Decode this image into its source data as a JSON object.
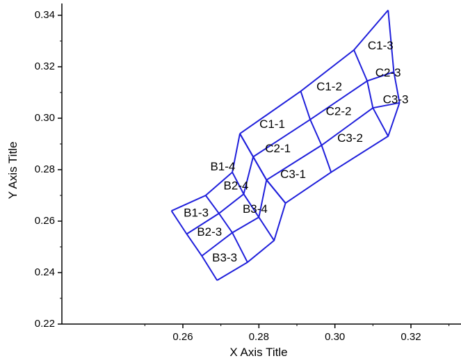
{
  "chart_data": {
    "type": "mesh-grid",
    "xlabel": "X Axis Title",
    "ylabel": "Y Axis Title",
    "xlim": [
      0.25,
      0.33
    ],
    "ylim": [
      0.22,
      0.345
    ],
    "xticks": [
      0.26,
      0.28,
      0.3,
      0.32
    ],
    "yticks": [
      0.22,
      0.24,
      0.26,
      0.28,
      0.3,
      0.32,
      0.34
    ],
    "tick_labels_x": [
      "0.26",
      "0.28",
      "0.30",
      "0.32"
    ],
    "tick_labels_y": [
      "0.22",
      "0.24",
      "0.26",
      "0.28",
      "0.30",
      "0.32",
      "0.34"
    ],
    "line_color": "#1f1fdb",
    "grid_lines": false,
    "blocks": [
      {
        "name": "B",
        "points": [
          [
            [
              0.257,
              0.264
            ],
            [
              0.266,
              0.27
            ],
            [
              0.273,
              0.279
            ],
            [
              0.275,
              0.294
            ]
          ],
          [
            [
              0.261,
              0.255
            ],
            [
              0.2695,
              0.263
            ],
            [
              0.276,
              0.2705
            ],
            [
              0.2785,
              0.285
            ]
          ],
          [
            [
              0.265,
              0.2465
            ],
            [
              0.273,
              0.2555
            ],
            [
              0.28,
              0.2615
            ],
            [
              0.282,
              0.276
            ]
          ],
          [
            [
              0.269,
              0.237
            ],
            [
              0.277,
              0.244
            ],
            [
              0.284,
              0.2525
            ],
            [
              0.287,
              0.267
            ]
          ]
        ]
      },
      {
        "name": "C",
        "points": [
          [
            [
              0.275,
              0.294
            ],
            [
              0.291,
              0.3105
            ],
            [
              0.305,
              0.3265
            ],
            [
              0.314,
              0.342
            ]
          ],
          [
            [
              0.2785,
              0.285
            ],
            [
              0.2935,
              0.2995
            ],
            [
              0.3085,
              0.3145
            ],
            [
              0.3155,
              0.318
            ]
          ],
          [
            [
              0.282,
              0.276
            ],
            [
              0.2965,
              0.2895
            ],
            [
              0.31,
              0.304
            ],
            [
              0.317,
              0.306
            ]
          ],
          [
            [
              0.287,
              0.267
            ],
            [
              0.299,
              0.279
            ],
            [
              0.314,
              0.293
            ],
            [
              0.317,
              0.306
            ]
          ]
        ]
      }
    ],
    "cells": [
      {
        "label": "B1-3",
        "x": 0.2635,
        "y": 0.263
      },
      {
        "label": "B1-4",
        "x": 0.2705,
        "y": 0.281
      },
      {
        "label": "B2-3",
        "x": 0.267,
        "y": 0.2555
      },
      {
        "label": "B2-4",
        "x": 0.274,
        "y": 0.2735
      },
      {
        "label": "B3-3",
        "x": 0.271,
        "y": 0.2455
      },
      {
        "label": "B3-4",
        "x": 0.279,
        "y": 0.2645
      },
      {
        "label": "C1-1",
        "x": 0.2835,
        "y": 0.2975
      },
      {
        "label": "C1-2",
        "x": 0.2985,
        "y": 0.312
      },
      {
        "label": "C1-3",
        "x": 0.312,
        "y": 0.328
      },
      {
        "label": "C2-1",
        "x": 0.285,
        "y": 0.288
      },
      {
        "label": "C2-2",
        "x": 0.301,
        "y": 0.3025
      },
      {
        "label": "C2-3",
        "x": 0.314,
        "y": 0.3175
      },
      {
        "label": "C3-1",
        "x": 0.289,
        "y": 0.278
      },
      {
        "label": "C3-2",
        "x": 0.304,
        "y": 0.292
      },
      {
        "label": "C3-3",
        "x": 0.316,
        "y": 0.307
      }
    ]
  }
}
